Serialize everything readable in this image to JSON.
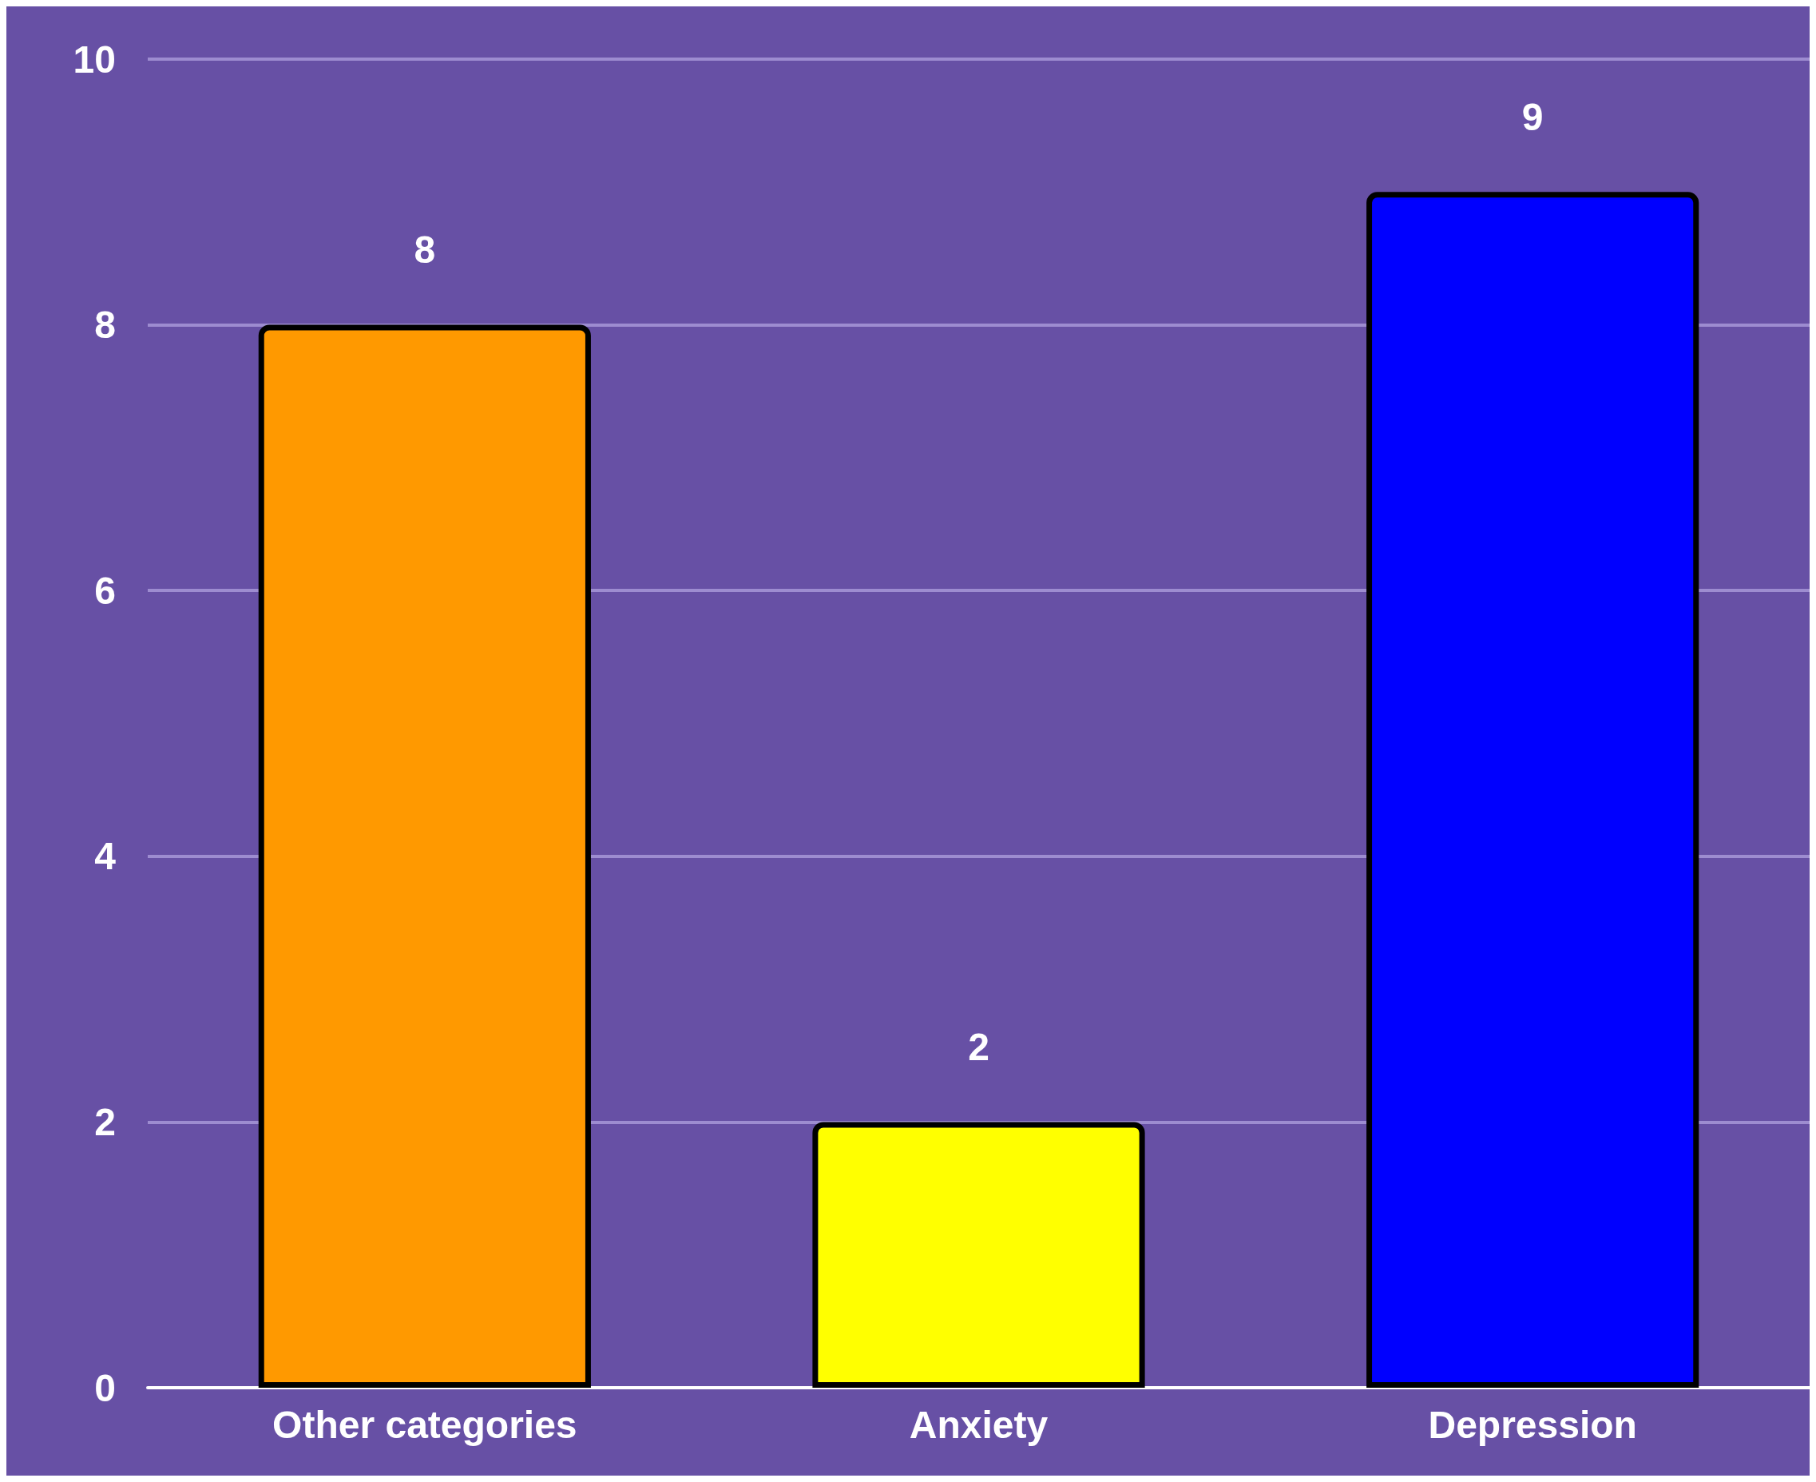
{
  "chart_data": {
    "type": "bar",
    "categories": [
      "Other categories",
      "Anxiety",
      "Depression"
    ],
    "values": [
      8,
      2,
      9
    ],
    "colors": [
      "#ff9900",
      "#ffff00",
      "#0000ff"
    ],
    "ylim": [
      0,
      10
    ],
    "yticks": [
      0,
      2,
      4,
      6,
      8,
      10
    ],
    "grid": "y",
    "data_labels": true
  }
}
